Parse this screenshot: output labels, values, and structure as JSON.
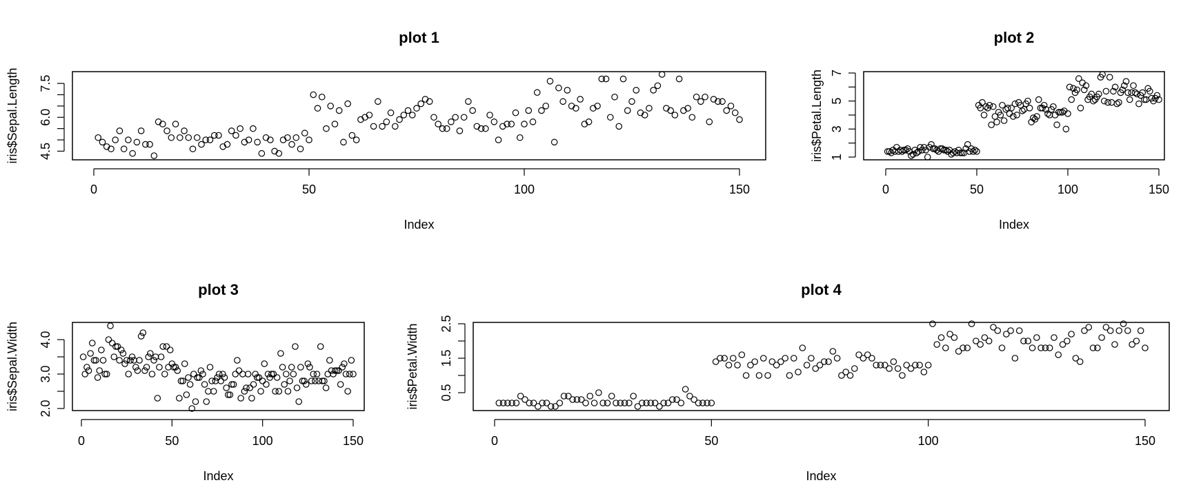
{
  "chart_data": [
    {
      "type": "scatter",
      "title": "plot 1",
      "xlabel": "Index",
      "ylabel": "iris$Sepal.Length",
      "xlim": [
        0,
        150
      ],
      "ylim": [
        4.3,
        7.9
      ],
      "xticks": [
        0,
        50,
        100,
        150
      ],
      "yticks": [
        4.5,
        5.0,
        5.5,
        6.0,
        6.5,
        7.0,
        7.5
      ],
      "ytick_labels": [
        "4.5",
        "",
        "",
        "6.0",
        "",
        "",
        "7.5"
      ],
      "grid": false,
      "x": [
        1,
        2,
        3,
        4,
        5,
        6,
        7,
        8,
        9,
        10,
        11,
        12,
        13,
        14,
        15,
        16,
        17,
        18,
        19,
        20,
        21,
        22,
        23,
        24,
        25,
        26,
        27,
        28,
        29,
        30,
        31,
        32,
        33,
        34,
        35,
        36,
        37,
        38,
        39,
        40,
        41,
        42,
        43,
        44,
        45,
        46,
        47,
        48,
        49,
        50,
        51,
        52,
        53,
        54,
        55,
        56,
        57,
        58,
        59,
        60,
        61,
        62,
        63,
        64,
        65,
        66,
        67,
        68,
        69,
        70,
        71,
        72,
        73,
        74,
        75,
        76,
        77,
        78,
        79,
        80,
        81,
        82,
        83,
        84,
        85,
        86,
        87,
        88,
        89,
        90,
        91,
        92,
        93,
        94,
        95,
        96,
        97,
        98,
        99,
        100,
        101,
        102,
        103,
        104,
        105,
        106,
        107,
        108,
        109,
        110,
        111,
        112,
        113,
        114,
        115,
        116,
        117,
        118,
        119,
        120,
        121,
        122,
        123,
        124,
        125,
        126,
        127,
        128,
        129,
        130,
        131,
        132,
        133,
        134,
        135,
        136,
        137,
        138,
        139,
        140,
        141,
        142,
        143,
        144,
        145,
        146,
        147,
        148,
        149,
        150
      ],
      "y": [
        5.1,
        4.9,
        4.7,
        4.6,
        5.0,
        5.4,
        4.6,
        5.0,
        4.4,
        4.9,
        5.4,
        4.8,
        4.8,
        4.3,
        5.8,
        5.7,
        5.4,
        5.1,
        5.7,
        5.1,
        5.4,
        5.1,
        4.6,
        5.1,
        4.8,
        5.0,
        5.0,
        5.2,
        5.2,
        4.7,
        4.8,
        5.4,
        5.2,
        5.5,
        4.9,
        5.0,
        5.5,
        4.9,
        4.4,
        5.1,
        5.0,
        4.5,
        4.4,
        5.0,
        5.1,
        4.8,
        5.1,
        4.6,
        5.3,
        5.0,
        7.0,
        6.4,
        6.9,
        5.5,
        6.5,
        5.7,
        6.3,
        4.9,
        6.6,
        5.2,
        5.0,
        5.9,
        6.0,
        6.1,
        5.6,
        6.7,
        5.6,
        5.8,
        6.2,
        5.6,
        5.9,
        6.1,
        6.3,
        6.1,
        6.4,
        6.6,
        6.8,
        6.7,
        6.0,
        5.7,
        5.5,
        5.5,
        5.8,
        6.0,
        5.4,
        6.0,
        6.7,
        6.3,
        5.6,
        5.5,
        5.5,
        6.1,
        5.8,
        5.0,
        5.6,
        5.7,
        5.7,
        6.2,
        5.1,
        5.7,
        6.3,
        5.8,
        7.1,
        6.3,
        6.5,
        7.6,
        4.9,
        7.3,
        6.7,
        7.2,
        6.5,
        6.4,
        6.8,
        5.7,
        5.8,
        6.4,
        6.5,
        7.7,
        7.7,
        6.0,
        6.9,
        5.6,
        7.7,
        6.3,
        6.7,
        7.2,
        6.2,
        6.1,
        6.4,
        7.2,
        7.4,
        7.9,
        6.4,
        6.3,
        6.1,
        7.7,
        6.3,
        6.4,
        6.0,
        6.9,
        6.7,
        6.9,
        5.8,
        6.8,
        6.7,
        6.7,
        6.3,
        6.5,
        6.2,
        5.9
      ]
    },
    {
      "type": "scatter",
      "title": "plot 2",
      "xlabel": "Index",
      "ylabel": "iris$Petal.Length",
      "xlim": [
        0,
        150
      ],
      "ylim": [
        1.0,
        6.9
      ],
      "xticks": [
        0,
        50,
        100,
        150
      ],
      "yticks": [
        1,
        2,
        3,
        4,
        5,
        6,
        7
      ],
      "ytick_labels": [
        "1",
        "",
        "3",
        "",
        "5",
        "",
        "7"
      ],
      "grid": false,
      "x": [
        1,
        2,
        3,
        4,
        5,
        6,
        7,
        8,
        9,
        10,
        11,
        12,
        13,
        14,
        15,
        16,
        17,
        18,
        19,
        20,
        21,
        22,
        23,
        24,
        25,
        26,
        27,
        28,
        29,
        30,
        31,
        32,
        33,
        34,
        35,
        36,
        37,
        38,
        39,
        40,
        41,
        42,
        43,
        44,
        45,
        46,
        47,
        48,
        49,
        50,
        51,
        52,
        53,
        54,
        55,
        56,
        57,
        58,
        59,
        60,
        61,
        62,
        63,
        64,
        65,
        66,
        67,
        68,
        69,
        70,
        71,
        72,
        73,
        74,
        75,
        76,
        77,
        78,
        79,
        80,
        81,
        82,
        83,
        84,
        85,
        86,
        87,
        88,
        89,
        90,
        91,
        92,
        93,
        94,
        95,
        96,
        97,
        98,
        99,
        100,
        101,
        102,
        103,
        104,
        105,
        106,
        107,
        108,
        109,
        110,
        111,
        112,
        113,
        114,
        115,
        116,
        117,
        118,
        119,
        120,
        121,
        122,
        123,
        124,
        125,
        126,
        127,
        128,
        129,
        130,
        131,
        132,
        133,
        134,
        135,
        136,
        137,
        138,
        139,
        140,
        141,
        142,
        143,
        144,
        145,
        146,
        147,
        148,
        149,
        150
      ],
      "y": [
        1.4,
        1.4,
        1.3,
        1.5,
        1.4,
        1.7,
        1.4,
        1.5,
        1.4,
        1.5,
        1.5,
        1.6,
        1.4,
        1.1,
        1.2,
        1.5,
        1.3,
        1.4,
        1.7,
        1.5,
        1.7,
        1.5,
        1.0,
        1.7,
        1.9,
        1.6,
        1.6,
        1.5,
        1.4,
        1.6,
        1.6,
        1.5,
        1.5,
        1.4,
        1.5,
        1.2,
        1.3,
        1.4,
        1.3,
        1.5,
        1.3,
        1.3,
        1.3,
        1.6,
        1.9,
        1.4,
        1.6,
        1.4,
        1.5,
        1.4,
        4.7,
        4.5,
        4.9,
        4.0,
        4.6,
        4.5,
        4.7,
        3.3,
        4.6,
        3.9,
        3.5,
        4.2,
        4.0,
        4.7,
        3.6,
        4.4,
        4.5,
        4.1,
        4.5,
        3.9,
        4.8,
        4.0,
        4.9,
        4.7,
        4.3,
        4.4,
        4.8,
        5.0,
        4.5,
        3.5,
        3.8,
        3.7,
        3.9,
        5.1,
        4.5,
        4.5,
        4.7,
        4.4,
        4.1,
        4.0,
        4.4,
        4.6,
        4.0,
        3.3,
        4.2,
        4.2,
        4.2,
        4.3,
        3.0,
        4.1,
        6.0,
        5.1,
        5.9,
        5.6,
        5.8,
        6.6,
        4.5,
        6.3,
        5.8,
        6.1,
        5.1,
        5.3,
        5.5,
        5.0,
        5.1,
        5.3,
        5.5,
        6.7,
        6.9,
        5.0,
        5.7,
        4.9,
        6.7,
        4.9,
        5.7,
        6.0,
        4.8,
        4.9,
        5.6,
        5.8,
        6.1,
        6.4,
        5.6,
        5.1,
        5.6,
        6.1,
        5.6,
        5.5,
        4.8,
        5.4,
        5.6,
        5.1,
        5.1,
        5.9,
        5.7,
        5.2,
        5.0,
        5.2,
        5.4,
        5.1
      ]
    },
    {
      "type": "scatter",
      "title": "plot 3",
      "xlabel": "Index",
      "ylabel": "iris$Sepal.Width",
      "xlim": [
        0,
        150
      ],
      "ylim": [
        2.0,
        4.4
      ],
      "xticks": [
        0,
        50,
        100,
        150
      ],
      "yticks": [
        2.0,
        2.5,
        3.0,
        3.5,
        4.0
      ],
      "ytick_labels": [
        "2.0",
        "",
        "3.0",
        "",
        "4.0"
      ],
      "grid": false,
      "x": [
        1,
        2,
        3,
        4,
        5,
        6,
        7,
        8,
        9,
        10,
        11,
        12,
        13,
        14,
        15,
        16,
        17,
        18,
        19,
        20,
        21,
        22,
        23,
        24,
        25,
        26,
        27,
        28,
        29,
        30,
        31,
        32,
        33,
        34,
        35,
        36,
        37,
        38,
        39,
        40,
        41,
        42,
        43,
        44,
        45,
        46,
        47,
        48,
        49,
        50,
        51,
        52,
        53,
        54,
        55,
        56,
        57,
        58,
        59,
        60,
        61,
        62,
        63,
        64,
        65,
        66,
        67,
        68,
        69,
        70,
        71,
        72,
        73,
        74,
        75,
        76,
        77,
        78,
        79,
        80,
        81,
        82,
        83,
        84,
        85,
        86,
        87,
        88,
        89,
        90,
        91,
        92,
        93,
        94,
        95,
        96,
        97,
        98,
        99,
        100,
        101,
        102,
        103,
        104,
        105,
        106,
        107,
        108,
        109,
        110,
        111,
        112,
        113,
        114,
        115,
        116,
        117,
        118,
        119,
        120,
        121,
        122,
        123,
        124,
        125,
        126,
        127,
        128,
        129,
        130,
        131,
        132,
        133,
        134,
        135,
        136,
        137,
        138,
        139,
        140,
        141,
        142,
        143,
        144,
        145,
        146,
        147,
        148,
        149,
        150
      ],
      "y": [
        3.5,
        3.0,
        3.2,
        3.1,
        3.6,
        3.9,
        3.4,
        3.4,
        2.9,
        3.1,
        3.7,
        3.4,
        3.0,
        3.0,
        4.0,
        4.4,
        3.9,
        3.5,
        3.8,
        3.8,
        3.4,
        3.7,
        3.6,
        3.3,
        3.4,
        3.0,
        3.4,
        3.5,
        3.4,
        3.2,
        3.1,
        3.4,
        4.1,
        4.2,
        3.1,
        3.2,
        3.5,
        3.6,
        3.0,
        3.4,
        3.5,
        2.3,
        3.2,
        3.5,
        3.8,
        3.0,
        3.8,
        3.2,
        3.7,
        3.3,
        3.2,
        3.2,
        3.1,
        2.3,
        2.8,
        2.8,
        3.3,
        2.4,
        2.9,
        2.7,
        2.0,
        3.0,
        2.2,
        2.9,
        2.9,
        3.1,
        3.0,
        2.7,
        2.2,
        2.5,
        3.2,
        2.8,
        2.5,
        2.8,
        2.9,
        3.0,
        2.8,
        3.0,
        2.9,
        2.6,
        2.4,
        2.4,
        2.7,
        2.7,
        3.0,
        3.4,
        3.1,
        2.3,
        3.0,
        2.5,
        2.6,
        3.0,
        2.6,
        2.3,
        2.7,
        3.0,
        2.9,
        2.9,
        2.5,
        2.8,
        3.3,
        2.7,
        3.0,
        2.9,
        3.0,
        3.0,
        2.5,
        2.9,
        2.5,
        3.6,
        3.2,
        2.7,
        3.0,
        2.5,
        2.8,
        3.2,
        3.0,
        3.8,
        2.6,
        2.2,
        3.2,
        2.8,
        2.8,
        2.7,
        3.3,
        3.2,
        2.8,
        3.0,
        2.8,
        3.0,
        2.8,
        3.8,
        2.8,
        2.8,
        2.6,
        3.0,
        3.4,
        3.1,
        3.0,
        3.1,
        3.1,
        3.1,
        2.7,
        3.2,
        3.3,
        3.0,
        2.5,
        3.0,
        3.4,
        3.0
      ]
    },
    {
      "type": "scatter",
      "title": "plot 4",
      "xlabel": "Index",
      "ylabel": "iris$Petal.Width",
      "xlim": [
        0,
        150
      ],
      "ylim": [
        0.1,
        2.5
      ],
      "xticks": [
        0,
        50,
        100,
        150
      ],
      "yticks": [
        0.5,
        1.0,
        1.5,
        2.0,
        2.5
      ],
      "ytick_labels": [
        "0.5",
        "",
        "1.5",
        "",
        "2.5"
      ],
      "grid": false,
      "x": [
        1,
        2,
        3,
        4,
        5,
        6,
        7,
        8,
        9,
        10,
        11,
        12,
        13,
        14,
        15,
        16,
        17,
        18,
        19,
        20,
        21,
        22,
        23,
        24,
        25,
        26,
        27,
        28,
        29,
        30,
        31,
        32,
        33,
        34,
        35,
        36,
        37,
        38,
        39,
        40,
        41,
        42,
        43,
        44,
        45,
        46,
        47,
        48,
        49,
        50,
        51,
        52,
        53,
        54,
        55,
        56,
        57,
        58,
        59,
        60,
        61,
        62,
        63,
        64,
        65,
        66,
        67,
        68,
        69,
        70,
        71,
        72,
        73,
        74,
        75,
        76,
        77,
        78,
        79,
        80,
        81,
        82,
        83,
        84,
        85,
        86,
        87,
        88,
        89,
        90,
        91,
        92,
        93,
        94,
        95,
        96,
        97,
        98,
        99,
        100,
        101,
        102,
        103,
        104,
        105,
        106,
        107,
        108,
        109,
        110,
        111,
        112,
        113,
        114,
        115,
        116,
        117,
        118,
        119,
        120,
        121,
        122,
        123,
        124,
        125,
        126,
        127,
        128,
        129,
        130,
        131,
        132,
        133,
        134,
        135,
        136,
        137,
        138,
        139,
        140,
        141,
        142,
        143,
        144,
        145,
        146,
        147,
        148,
        149,
        150
      ],
      "y": [
        0.2,
        0.2,
        0.2,
        0.2,
        0.2,
        0.4,
        0.3,
        0.2,
        0.2,
        0.1,
        0.2,
        0.2,
        0.1,
        0.1,
        0.2,
        0.4,
        0.4,
        0.3,
        0.3,
        0.3,
        0.2,
        0.4,
        0.2,
        0.5,
        0.2,
        0.2,
        0.4,
        0.2,
        0.2,
        0.2,
        0.2,
        0.4,
        0.1,
        0.2,
        0.2,
        0.2,
        0.2,
        0.1,
        0.2,
        0.2,
        0.3,
        0.3,
        0.2,
        0.6,
        0.4,
        0.3,
        0.2,
        0.2,
        0.2,
        0.2,
        1.4,
        1.5,
        1.5,
        1.3,
        1.5,
        1.3,
        1.6,
        1.0,
        1.3,
        1.4,
        1.0,
        1.5,
        1.0,
        1.4,
        1.3,
        1.4,
        1.5,
        1.0,
        1.5,
        1.1,
        1.8,
        1.3,
        1.5,
        1.2,
        1.3,
        1.4,
        1.4,
        1.7,
        1.5,
        1.0,
        1.1,
        1.0,
        1.2,
        1.6,
        1.5,
        1.6,
        1.5,
        1.3,
        1.3,
        1.3,
        1.2,
        1.4,
        1.2,
        1.0,
        1.3,
        1.2,
        1.3,
        1.3,
        1.1,
        1.3,
        2.5,
        1.9,
        2.1,
        1.8,
        2.2,
        2.1,
        1.7,
        1.8,
        1.8,
        2.5,
        2.0,
        1.9,
        2.1,
        2.0,
        2.4,
        2.3,
        1.8,
        2.2,
        2.3,
        1.5,
        2.3,
        2.0,
        2.0,
        1.8,
        2.1,
        1.8,
        1.8,
        1.8,
        2.1,
        1.6,
        1.9,
        2.0,
        2.2,
        1.5,
        1.4,
        2.3,
        2.4,
        1.8,
        1.8,
        2.1,
        2.4,
        2.3,
        1.9,
        2.3,
        2.5,
        2.3,
        1.9,
        2.0,
        2.3,
        1.8
      ]
    }
  ]
}
